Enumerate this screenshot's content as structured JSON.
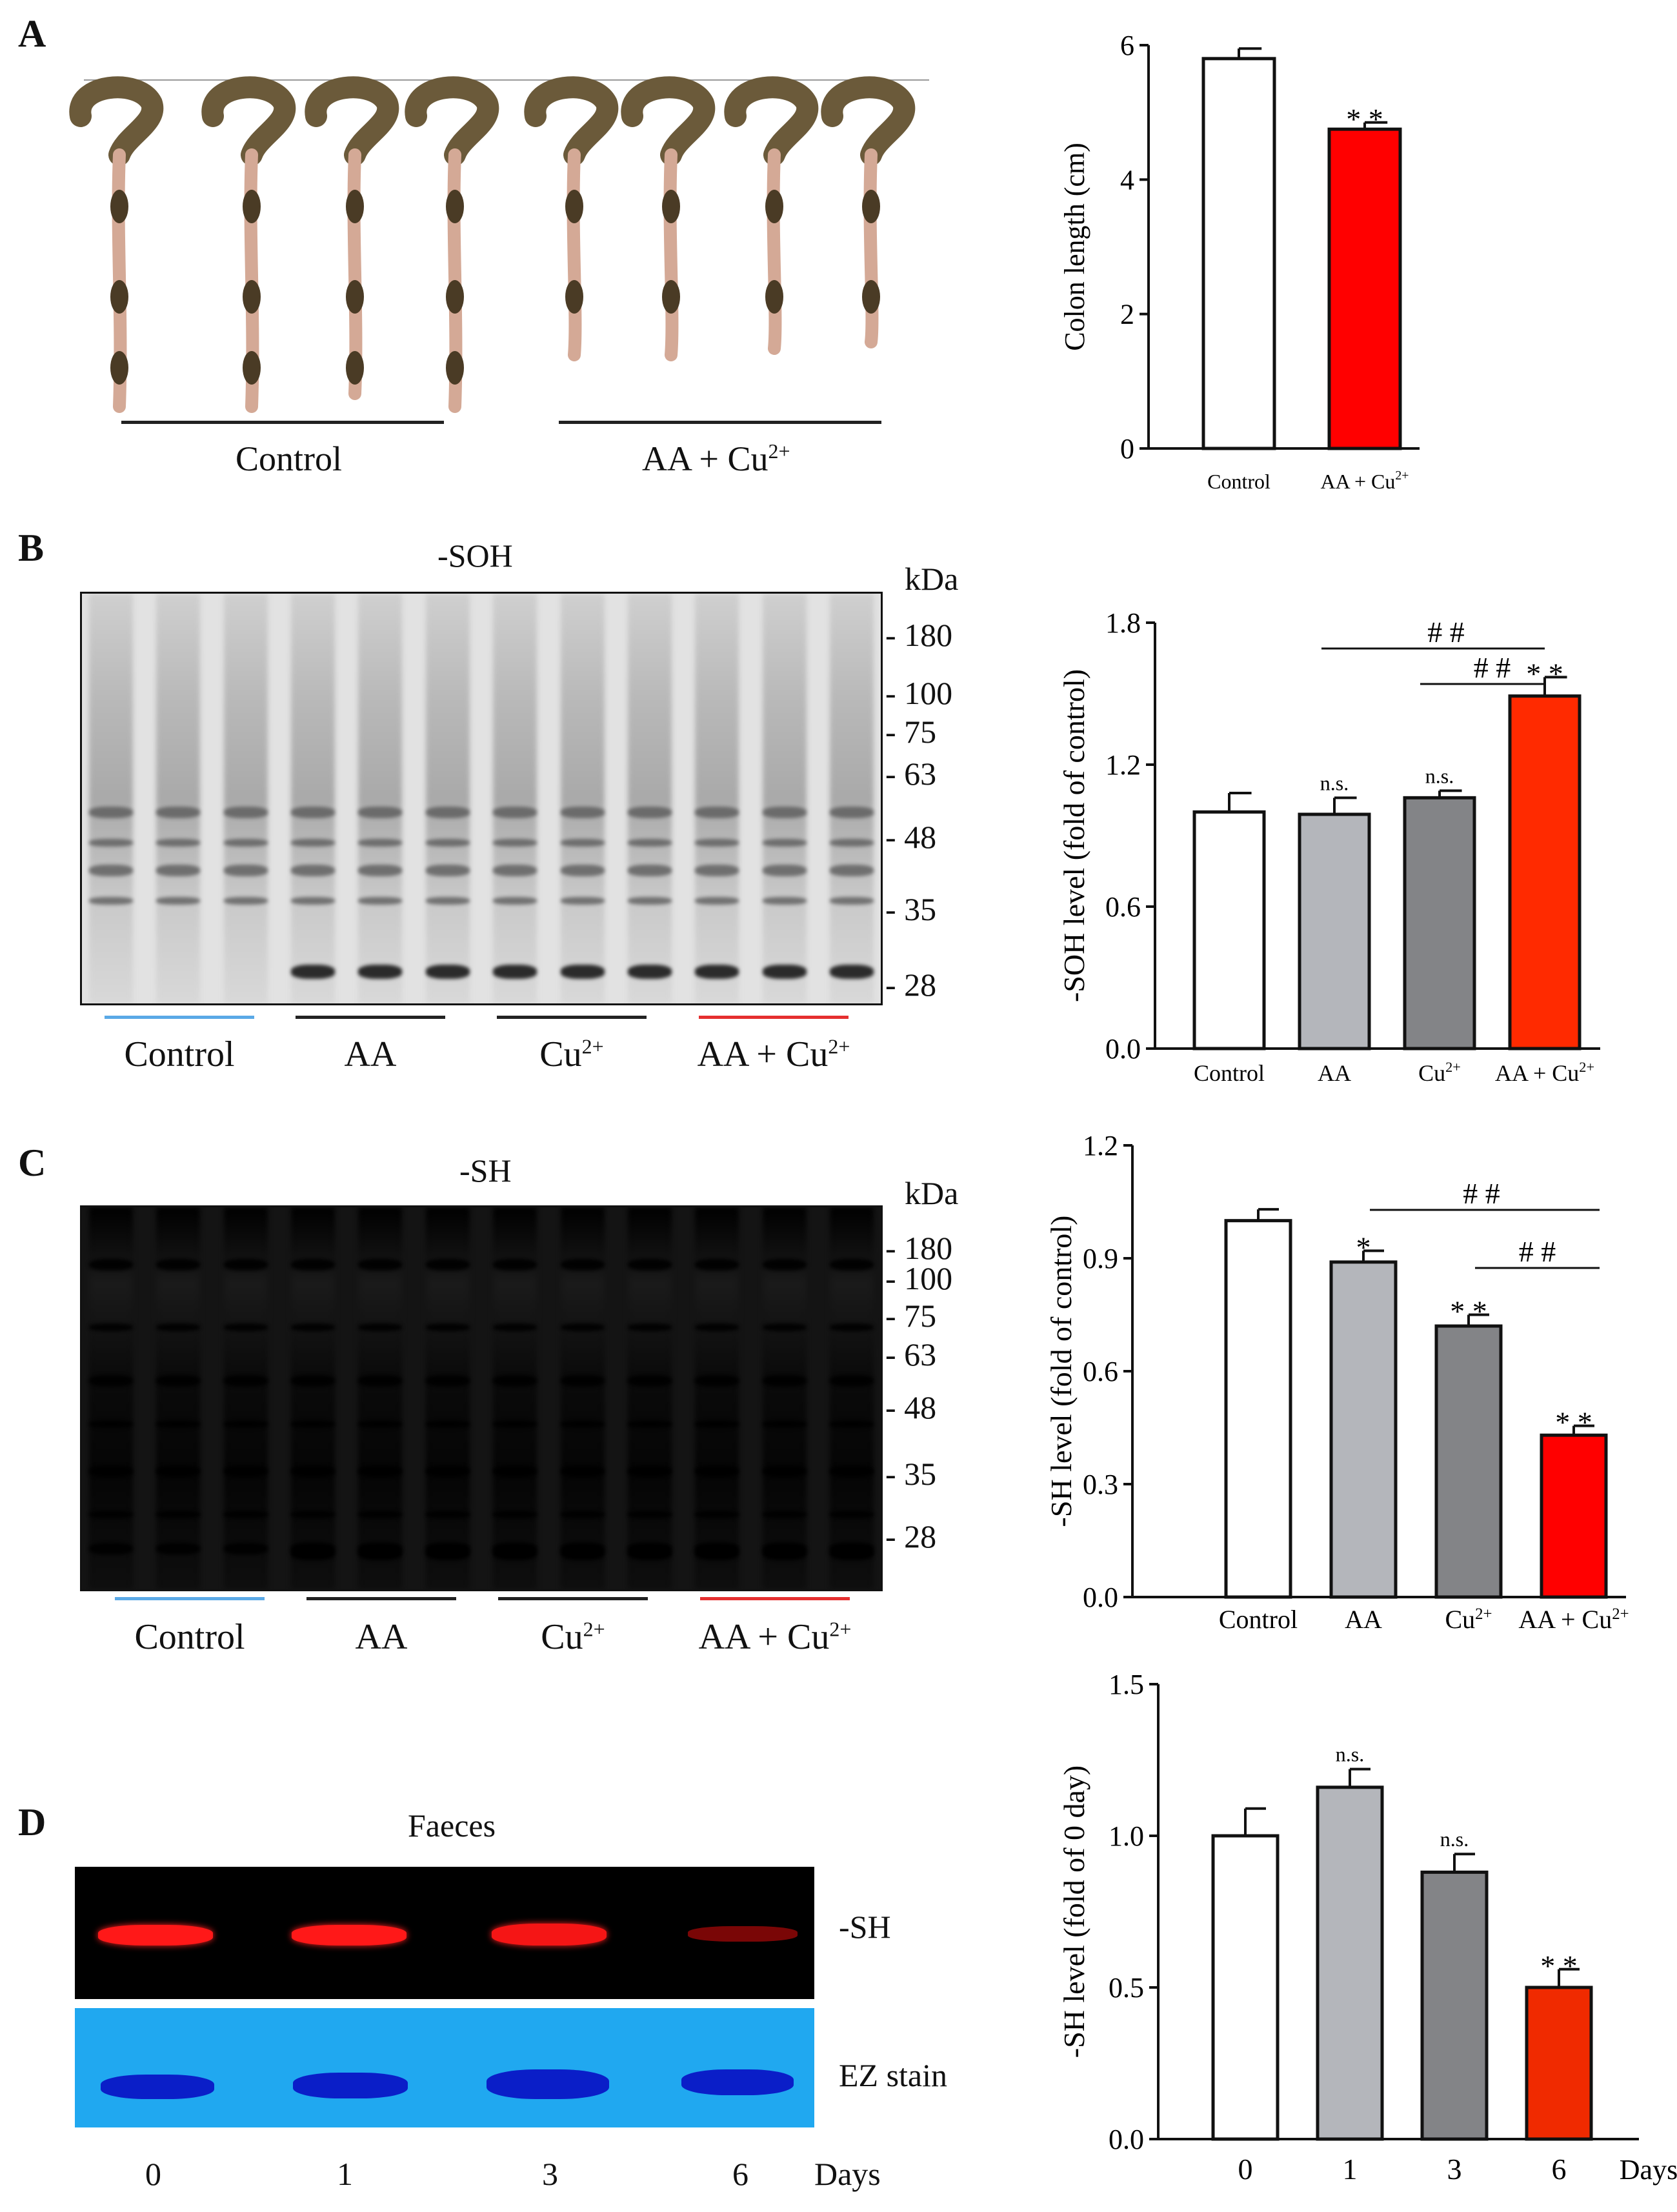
{
  "panels": {
    "A": {
      "letter": "A",
      "group_labels": [
        "Control",
        "AA + Cu",
        "2+"
      ],
      "chart": {
        "type": "bar",
        "categories": [
          "Control",
          "AA + Cu"
        ],
        "category_sup": [
          "",
          "2+"
        ],
        "values": [
          5.8,
          4.75
        ],
        "errors": [
          0.15,
          0.1
        ],
        "colors": [
          "#ffffff",
          "#ff0000"
        ],
        "significance": [
          "",
          "* *"
        ],
        "ylabel": "Colon length (cm)",
        "ylim": [
          0,
          6
        ],
        "yticks": [
          0,
          2,
          4,
          6
        ],
        "ytick_labels": [
          "0",
          "2",
          "4",
          "6"
        ]
      }
    },
    "B": {
      "letter": "B",
      "blot_title": "-SOH",
      "kda_title": "kDa",
      "markers": [
        "180",
        "100",
        "75",
        "63",
        "48",
        "35",
        "28"
      ],
      "group_labels": [
        {
          "text": "Control",
          "sup": ""
        },
        {
          "text": "AA",
          "sup": ""
        },
        {
          "text": "Cu",
          "sup": "2+"
        },
        {
          "text": "AA + Cu",
          "sup": "2+"
        }
      ],
      "underline_colors": [
        "#5aa9e6",
        "#222222",
        "#222222",
        "#e53030"
      ],
      "chart": {
        "type": "bar",
        "categories": [
          "Control",
          "AA",
          "Cu",
          "AA + Cu"
        ],
        "category_sup": [
          "",
          "",
          "2+",
          "2+"
        ],
        "values": [
          1.0,
          0.99,
          1.06,
          1.49
        ],
        "errors": [
          0.08,
          0.07,
          0.03,
          0.08
        ],
        "colors": [
          "#ffffff",
          "#b4b6bb",
          "#838487",
          "#ff2a00"
        ],
        "significance": [
          "",
          "n.s.",
          "n.s.",
          "* *"
        ],
        "brackets": [
          "# #",
          "# #"
        ],
        "ylabel": "-SOH level (fold of control)",
        "ylim": [
          0,
          1.8
        ],
        "yticks": [
          0,
          0.6,
          1.2,
          1.8
        ],
        "ytick_labels": [
          "0.0",
          "0.6",
          "1.2",
          "1.8"
        ]
      }
    },
    "C": {
      "letter": "C",
      "blot_title": "-SH",
      "kda_title": "kDa",
      "markers": [
        "180",
        "100",
        "75",
        "63",
        "48",
        "35",
        "28"
      ],
      "group_labels": [
        {
          "text": "Control",
          "sup": ""
        },
        {
          "text": "AA",
          "sup": ""
        },
        {
          "text": "Cu",
          "sup": "2+"
        },
        {
          "text": "AA + Cu",
          "sup": "2+"
        }
      ],
      "underline_colors": [
        "#5aa9e6",
        "#222222",
        "#222222",
        "#e53030"
      ],
      "chart": {
        "type": "bar",
        "categories": [
          "Control",
          "AA",
          "Cu",
          "AA + Cu"
        ],
        "category_sup": [
          "",
          "",
          "2+",
          "2+"
        ],
        "values": [
          1.0,
          0.89,
          0.72,
          0.43
        ],
        "errors": [
          0.03,
          0.03,
          0.03,
          0.025
        ],
        "colors": [
          "#ffffff",
          "#b4b6bb",
          "#838487",
          "#ff0000"
        ],
        "significance": [
          "",
          "*",
          "* *",
          "* *"
        ],
        "brackets": [
          "# #",
          "# #"
        ],
        "ylabel": "-SH level (fold of control)",
        "ylim": [
          0,
          1.2
        ],
        "yticks": [
          0,
          0.3,
          0.6,
          0.9,
          1.2
        ],
        "ytick_labels": [
          "0.0",
          "0.3",
          "0.6",
          "0.9",
          "1.2"
        ]
      }
    },
    "D": {
      "letter": "D",
      "blot_title": "Faeces",
      "row_labels": [
        "-SH",
        "EZ stain"
      ],
      "day_labels": [
        "0",
        "1",
        "3",
        "6"
      ],
      "days_word": "Days",
      "chart": {
        "type": "bar",
        "categories": [
          "0",
          "1",
          "3",
          "6"
        ],
        "xlabel": "Days",
        "values": [
          1.0,
          1.16,
          0.88,
          0.5
        ],
        "errors": [
          0.09,
          0.06,
          0.06,
          0.06
        ],
        "colors": [
          "#ffffff",
          "#b4b6bb",
          "#838487",
          "#f02a00"
        ],
        "significance": [
          "",
          "n.s.",
          "n.s.",
          "* *"
        ],
        "ylabel": "-SH level (fold of 0 day)",
        "ylim": [
          0,
          1.5
        ],
        "yticks": [
          0,
          0.5,
          1.0,
          1.5
        ],
        "ytick_labels": [
          "0.0",
          "0.5",
          "1.0",
          "1.5"
        ]
      }
    }
  }
}
